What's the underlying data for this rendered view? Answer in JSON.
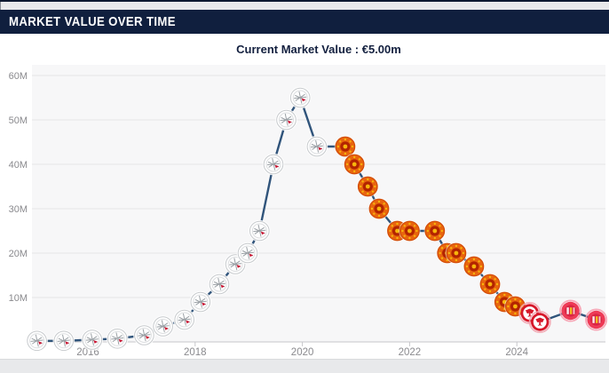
{
  "header": {
    "title": "MARKET VALUE OVER TIME"
  },
  "current_value": {
    "text": "Current Market Value : €5.00m"
  },
  "colors": {
    "page_bg": "#e8e9eb",
    "header_bg": "#101f3e",
    "header_text": "#ffffff",
    "panel_bg": "#ffffff",
    "value_text": "#13203f",
    "plot_bg": "#f7f7f8",
    "grid": "#e4e4e6",
    "axis": "#c6c6ca",
    "tick_label": "#8a8a8e",
    "line": "#30547b"
  },
  "chart_data": {
    "type": "line",
    "title": "Market value over time",
    "xlabel": "",
    "ylabel": "",
    "y_unit": "EUR millions",
    "x_ticks": [
      "2016",
      "2018",
      "2020",
      "2022",
      "2024"
    ],
    "y_ticks": [
      "60M",
      "50M",
      "40M",
      "30M",
      "20M",
      "10M"
    ],
    "xlim": [
      2014.95,
      2025.55
    ],
    "ylim": [
      0,
      62.4
    ],
    "grid": true,
    "legend": false,
    "line_color": "#30547b",
    "marker": "club-crest",
    "points": [
      {
        "x": 2015.05,
        "y": 0.25,
        "club": "ajax"
      },
      {
        "x": 2015.55,
        "y": 0.25,
        "club": "ajax"
      },
      {
        "x": 2016.08,
        "y": 0.5,
        "club": "ajax"
      },
      {
        "x": 2016.55,
        "y": 0.75,
        "club": "ajax"
      },
      {
        "x": 2017.05,
        "y": 1.5,
        "club": "ajax"
      },
      {
        "x": 2017.4,
        "y": 3.5,
        "club": "ajax"
      },
      {
        "x": 2017.8,
        "y": 5,
        "club": "ajax"
      },
      {
        "x": 2018.1,
        "y": 9,
        "club": "ajax"
      },
      {
        "x": 2018.45,
        "y": 13,
        "club": "ajax"
      },
      {
        "x": 2018.75,
        "y": 17.5,
        "club": "ajax"
      },
      {
        "x": 2018.98,
        "y": 20,
        "club": "ajax"
      },
      {
        "x": 2019.2,
        "y": 25,
        "club": "ajax"
      },
      {
        "x": 2019.46,
        "y": 40,
        "club": "ajax"
      },
      {
        "x": 2019.7,
        "y": 50,
        "club": "ajax"
      },
      {
        "x": 2019.96,
        "y": 55,
        "club": "ajax"
      },
      {
        "x": 2020.27,
        "y": 44,
        "club": "ajax"
      },
      {
        "x": 2020.8,
        "y": 44,
        "club": "manutd"
      },
      {
        "x": 2020.97,
        "y": 40,
        "club": "manutd"
      },
      {
        "x": 2021.22,
        "y": 35,
        "club": "manutd"
      },
      {
        "x": 2021.43,
        "y": 30,
        "club": "manutd"
      },
      {
        "x": 2021.77,
        "y": 25,
        "club": "manutd"
      },
      {
        "x": 2022.0,
        "y": 25,
        "club": "manutd"
      },
      {
        "x": 2022.47,
        "y": 25,
        "club": "manutd"
      },
      {
        "x": 2022.7,
        "y": 20,
        "club": "manutd"
      },
      {
        "x": 2022.87,
        "y": 20,
        "club": "manutd"
      },
      {
        "x": 2023.2,
        "y": 17,
        "club": "manutd"
      },
      {
        "x": 2023.5,
        "y": 13,
        "club": "manutd"
      },
      {
        "x": 2023.77,
        "y": 9,
        "club": "manutd"
      },
      {
        "x": 2023.97,
        "y": 8,
        "club": "manutd"
      },
      {
        "x": 2024.24,
        "y": 6.5,
        "club": "eintracht"
      },
      {
        "x": 2024.43,
        "y": 4.5,
        "club": "eintracht"
      },
      {
        "x": 2025.0,
        "y": 7,
        "club": "girona"
      },
      {
        "x": 2025.48,
        "y": 5,
        "club": "girona"
      }
    ],
    "clubs": {
      "ajax": {
        "label": "AFC Ajax crest",
        "base": "#ffffff",
        "detail": "#9aa0a5",
        "accent": "#c8102e",
        "ring": "#c7cacd"
      },
      "manutd": {
        "label": "Manchester United crest",
        "base": "#e8650e",
        "detail": "#b32400",
        "accent": "#f7b50c",
        "ring": "#d14b07"
      },
      "eintracht": {
        "label": "Eintracht Frankfurt crest",
        "base": "#ffffff",
        "detail": "#d7182a",
        "accent": "#d7182a",
        "ring": "#f2a7b3"
      },
      "girona": {
        "label": "Girona FC crest",
        "base": "#ee3a56",
        "detail": "#d92545",
        "accent": "#f6c21a",
        "ring": "#f6a0b0"
      }
    }
  }
}
